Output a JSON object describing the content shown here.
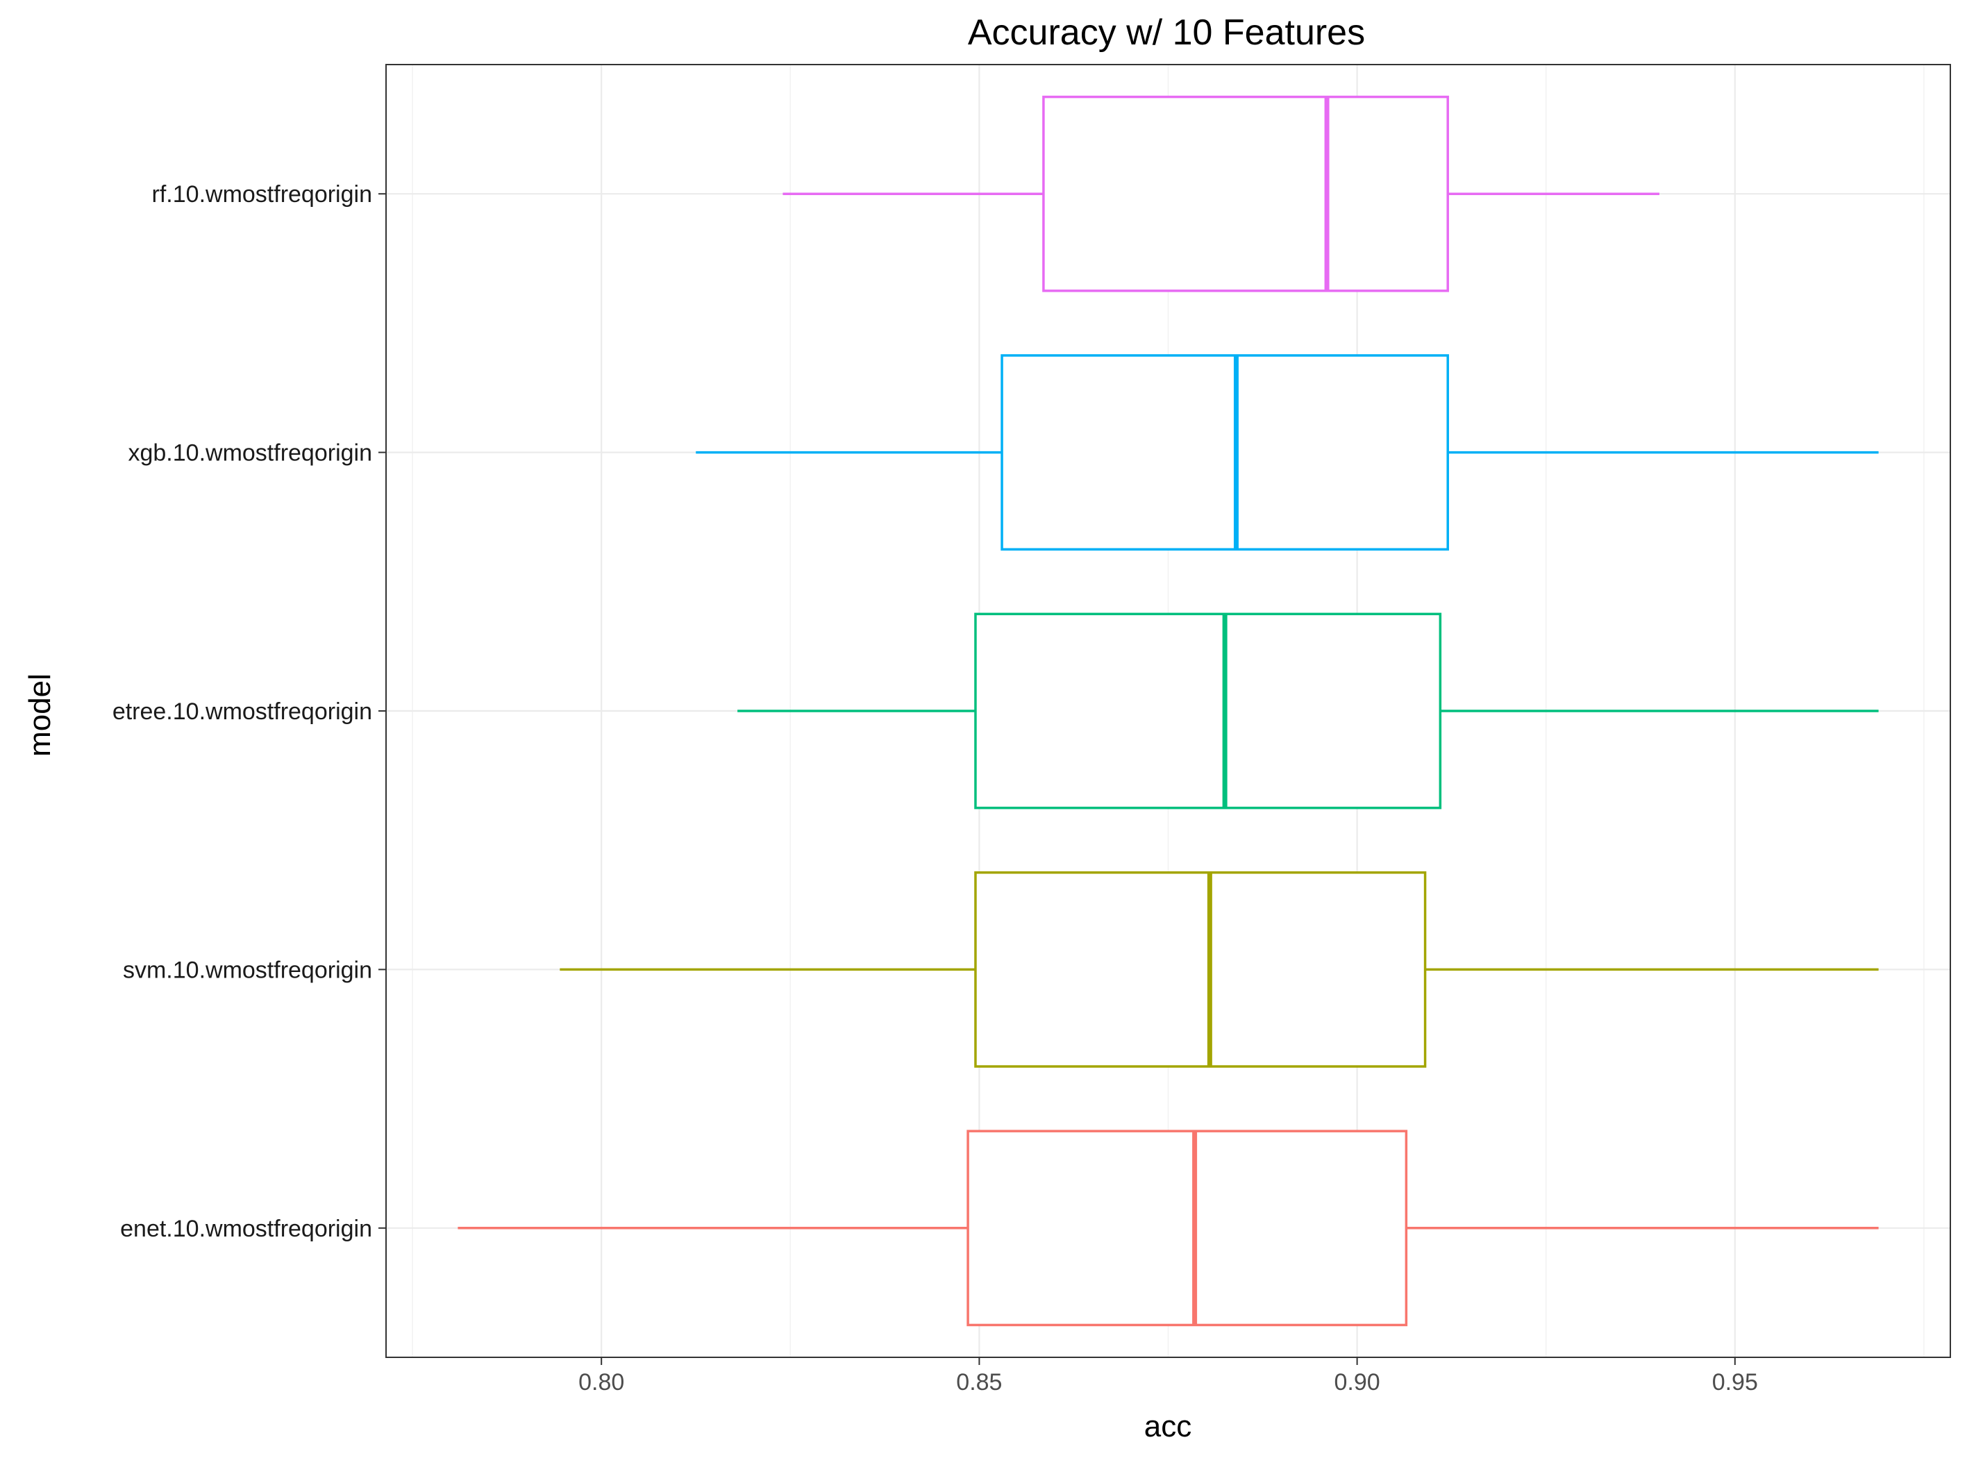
{
  "chart_data": {
    "type": "boxplot",
    "orientation": "horizontal",
    "title": "Accuracy w/ 10 Features",
    "xlabel": "acc",
    "ylabel": "model",
    "xlim": [
      0.7715,
      0.9785
    ],
    "xticks": [
      0.8,
      0.85,
      0.9,
      0.95
    ],
    "xtick_labels": [
      "0.80",
      "0.85",
      "0.90",
      "0.95"
    ],
    "grid": true,
    "theme": "bw",
    "categories": [
      "enet.10.wmostfreqorigin",
      "svm.10.wmostfreqorigin",
      "etree.10.wmostfreqorigin",
      "xgb.10.wmostfreqorigin",
      "rf.10.wmostfreqorigin"
    ],
    "series": [
      {
        "category": "enet.10.wmostfreqorigin",
        "color": "#F8766D",
        "whisker_low": 0.781,
        "q1": 0.8485,
        "median": 0.8785,
        "q3": 0.9065,
        "whisker_high": 0.969
      },
      {
        "category": "svm.10.wmostfreqorigin",
        "color": "#A3A500",
        "whisker_low": 0.7945,
        "q1": 0.8495,
        "median": 0.8805,
        "q3": 0.909,
        "whisker_high": 0.969
      },
      {
        "category": "etree.10.wmostfreqorigin",
        "color": "#00BF7D",
        "whisker_low": 0.818,
        "q1": 0.8495,
        "median": 0.8825,
        "q3": 0.911,
        "whisker_high": 0.969
      },
      {
        "category": "xgb.10.wmostfreqorigin",
        "color": "#00B0F6",
        "whisker_low": 0.8125,
        "q1": 0.853,
        "median": 0.884,
        "q3": 0.912,
        "whisker_high": 0.969
      },
      {
        "category": "rf.10.wmostfreqorigin",
        "color": "#E76BF3",
        "whisker_low": 0.824,
        "q1": 0.8585,
        "median": 0.896,
        "q3": 0.912,
        "whisker_high": 0.94
      }
    ]
  }
}
